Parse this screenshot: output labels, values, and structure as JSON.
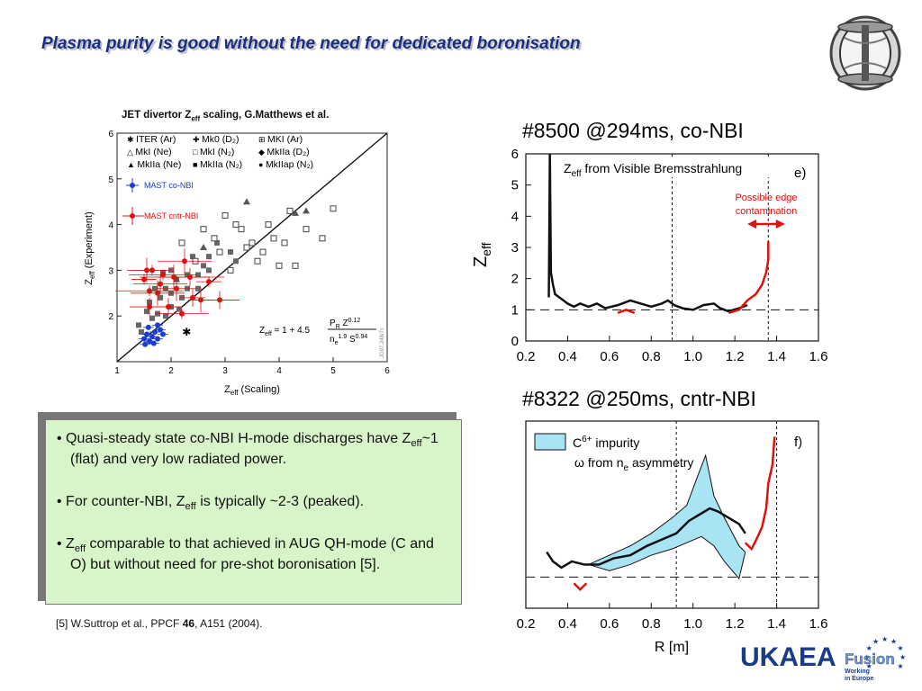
{
  "slide": {
    "title": "Plasma purity is good without the need for dedicated boronisation"
  },
  "left_chart_title": {
    "main": "JET divertor Z",
    "sub": "eff",
    "rest": " scaling, G.Matthews et al."
  },
  "plot_e_title": "#8500  @294ms, co-NBI",
  "plot_f_title": "#8322  @250ms, cntr-NBI",
  "bullets": {
    "b1_a": "• Quasi-steady state co-NBI H-mode discharges have Z",
    "b1_sub": "eff",
    "b1_b": "~1 (flat) and very low radiated power.",
    "b2_a": "• For counter-NBI, Z",
    "b2_sub": "eff",
    "b2_b": " is typically ~2-3 (peaked).",
    "b3_a": "• Z",
    "b3_sub": "eff",
    "b3_b": " comparable to that achieved in AUG QH-mode (C and O) but without need for pre-shot boronisation [5]."
  },
  "reference": {
    "a": "[5] W.Suttrop et al., PPCF ",
    "vol": "46",
    "b": ", A151 (2004)."
  },
  "logo": {
    "name": "UKAEA",
    "fusion": "Fusion",
    "line1": "Working",
    "line2": "in Europe"
  },
  "colors": {
    "title": "#1a2f7a",
    "textbox_bg": "#d7f5c9",
    "red": "#e01010",
    "blue": "#1a3cd0",
    "cyan_fill": "#a8e4f4",
    "logo_blue": "#1a3a8a"
  },
  "chart_data": [
    {
      "type": "scatter",
      "id": "jet-scaling",
      "xlabel_main": "Z",
      "xlabel_sub": "eff",
      "xlabel_rest": " (Scaling)",
      "ylabel_main": "Z",
      "ylabel_sub": "eff",
      "ylabel_rest": " (Experiment)",
      "xlim": [
        1,
        6
      ],
      "ylim": [
        1,
        6
      ],
      "xticks": [
        1,
        2,
        3,
        4,
        5,
        6
      ],
      "yticks": [
        2,
        3,
        4,
        5,
        6
      ],
      "diagonal": [
        [
          1,
          1
        ],
        [
          6,
          6
        ]
      ],
      "formula": {
        "lhs_main": "Z",
        "lhs_sub": "eff",
        "rhs_pre": " = 1 + 4.5",
        "num": "P",
        "num_sub": "R",
        "num_rest": " Z",
        "num_sup": "0.12",
        "den": "n",
        "den_sub": "e",
        "den_sup": "1.9",
        "den_rest": " S",
        "den_sup2": "0.94"
      },
      "watermark": "JG97.248/7c",
      "legend": [
        {
          "marker": "✱",
          "label": "ITER (Ar)"
        },
        {
          "marker": "✚",
          "label": "Mk0 (D₂)"
        },
        {
          "marker": "⊞",
          "label": "MKI (Ar)"
        },
        {
          "marker": "△",
          "label": "MkI (Ne)"
        },
        {
          "marker": "□",
          "label": "MkI (N₂)"
        },
        {
          "marker": "◆",
          "label": "MkIIa (D₂)"
        },
        {
          "marker": "▲",
          "label": "MkIIa (Ne)"
        },
        {
          "marker": "■",
          "label": "MkIIa (N₂)"
        },
        {
          "marker": "●",
          "label": "MkIIap (N₂)"
        }
      ],
      "mast_legend": {
        "co": "MAST co-NBI",
        "cntr": "MAST cntr-NBI",
        "co_point": [
          1.25,
          5.05
        ],
        "cntr_point": [
          1.25,
          4.45
        ]
      },
      "series": [
        {
          "name": "MAST cntr-NBI",
          "points": [
            [
              1.5,
              2.8
            ],
            [
              1.6,
              2.2
            ],
            [
              1.75,
              2.5
            ],
            [
              1.85,
              2.9
            ],
            [
              1.95,
              2.2
            ],
            [
              2.1,
              2.6
            ],
            [
              2.2,
              2.05
            ],
            [
              2.35,
              2.85
            ],
            [
              2.55,
              2.35
            ],
            [
              1.65,
              3.0
            ],
            [
              1.8,
              2.7
            ],
            [
              2.05,
              2.85
            ],
            [
              2.7,
              2.75
            ],
            [
              2.9,
              2.35
            ],
            [
              2.25,
              3.2
            ],
            [
              1.6,
              2.55
            ],
            [
              2.4,
              2.4
            ],
            [
              1.55,
              3.0
            ]
          ]
        },
        {
          "name": "MAST co-NBI",
          "points": [
            [
              1.5,
              1.5
            ],
            [
              1.55,
              1.6
            ],
            [
              1.6,
              1.45
            ],
            [
              1.65,
              1.55
            ],
            [
              1.7,
              1.65
            ],
            [
              1.75,
              1.5
            ],
            [
              1.8,
              1.7
            ],
            [
              1.58,
              1.75
            ],
            [
              1.68,
              1.4
            ],
            [
              1.75,
              1.8
            ],
            [
              1.85,
              1.6
            ],
            [
              1.52,
              1.38
            ]
          ]
        }
      ],
      "grey_points": [
        [
          1.6,
          2.3
        ],
        [
          1.7,
          2.6
        ],
        [
          1.8,
          2.4
        ],
        [
          1.9,
          2.6
        ],
        [
          2.0,
          2.5
        ],
        [
          2.1,
          2.8
        ],
        [
          2.2,
          2.4
        ],
        [
          2.3,
          2.6
        ],
        [
          2.4,
          3.3
        ],
        [
          2.6,
          3.1
        ],
        [
          2.7,
          3.0
        ],
        [
          2.85,
          3.6
        ],
        [
          3.1,
          3.4
        ],
        [
          3.2,
          3.2
        ],
        [
          2.5,
          2.9
        ],
        [
          1.55,
          2.1
        ],
        [
          1.65,
          1.95
        ],
        [
          1.75,
          2.05
        ],
        [
          1.45,
          1.65
        ],
        [
          1.4,
          1.8
        ],
        [
          2.0,
          2.2
        ],
        [
          2.15,
          2.15
        ],
        [
          2.5,
          2.6
        ],
        [
          1.9,
          2.0
        ],
        [
          2.3,
          2.9
        ],
        [
          2.0,
          3.0
        ],
        [
          2.7,
          3.3
        ],
        [
          1.85,
          2.95
        ]
      ],
      "open_squares": [
        [
          2.6,
          3.9
        ],
        [
          2.8,
          3.7
        ],
        [
          3.0,
          4.2
        ],
        [
          3.3,
          3.9
        ],
        [
          3.5,
          3.6
        ],
        [
          3.8,
          4.0
        ],
        [
          4.2,
          4.3
        ],
        [
          4.5,
          3.9
        ],
        [
          4.8,
          3.7
        ],
        [
          5.0,
          4.35
        ],
        [
          3.1,
          3.0
        ],
        [
          3.6,
          3.2
        ],
        [
          4.0,
          3.1
        ],
        [
          4.3,
          3.1
        ],
        [
          2.9,
          3.4
        ],
        [
          3.4,
          3.5
        ],
        [
          3.2,
          4.0
        ],
        [
          2.2,
          3.6
        ],
        [
          3.7,
          3.4
        ],
        [
          4.1,
          3.6
        ],
        [
          2.45,
          3.2
        ],
        [
          3.9,
          3.7
        ]
      ],
      "triangles": [
        [
          3.4,
          4.5
        ],
        [
          4.3,
          4.25
        ],
        [
          4.5,
          4.3
        ],
        [
          2.6,
          3.5
        ],
        [
          2.1,
          2.8
        ]
      ]
    },
    {
      "type": "line",
      "id": "plot-e",
      "label": "e)",
      "ylabel_main": "Z",
      "ylabel_sub": "eff",
      "legend_main": "Z",
      "legend_sub": "eff",
      "legend_rest": " from Visible Bremsstrahlung",
      "annotation": "Possible edge contamination",
      "annotation_range": [
        1.26,
        1.44
      ],
      "xlim": [
        0.2,
        1.6
      ],
      "ylim": [
        0,
        6
      ],
      "xticks": [
        0.2,
        0.4,
        0.6,
        0.8,
        1.0,
        1.2,
        1.4,
        1.6
      ],
      "yticks": [
        0,
        1,
        2,
        3,
        4,
        5,
        6
      ],
      "hline": 1,
      "vlines": [
        0.9,
        1.36
      ],
      "black_series": [
        [
          0.31,
          1.4
        ],
        [
          0.315,
          6.0
        ],
        [
          0.32,
          2.2
        ],
        [
          0.33,
          1.8
        ],
        [
          0.34,
          1.5
        ],
        [
          0.36,
          1.4
        ],
        [
          0.38,
          1.3
        ],
        [
          0.4,
          1.2
        ],
        [
          0.43,
          1.1
        ],
        [
          0.46,
          1.2
        ],
        [
          0.5,
          1.1
        ],
        [
          0.54,
          1.2
        ],
        [
          0.58,
          1.05
        ],
        [
          0.64,
          1.15
        ],
        [
          0.7,
          1.3
        ],
        [
          0.75,
          1.2
        ],
        [
          0.8,
          1.1
        ],
        [
          0.85,
          1.2
        ],
        [
          0.88,
          1.3
        ],
        [
          0.91,
          1.15
        ],
        [
          0.95,
          1.05
        ],
        [
          1.0,
          1.0
        ],
        [
          1.05,
          1.15
        ],
        [
          1.1,
          1.2
        ],
        [
          1.13,
          1.05
        ],
        [
          1.17,
          0.95
        ],
        [
          1.22,
          1.05
        ],
        [
          1.26,
          1.15
        ]
      ],
      "red_series": [
        [
          0.64,
          0.9
        ],
        [
          0.68,
          1.0
        ],
        [
          0.72,
          0.9
        ],
        [
          1.17,
          0.9
        ],
        [
          1.22,
          1.0
        ],
        [
          1.26,
          1.3
        ],
        [
          1.3,
          1.5
        ],
        [
          1.33,
          1.8
        ],
        [
          1.35,
          2.2
        ],
        [
          1.36,
          2.6
        ],
        [
          1.36,
          3.2
        ]
      ]
    },
    {
      "type": "line",
      "id": "plot-f",
      "label": "f)",
      "xlabel": "R [m]",
      "legend_a_main": "C",
      "legend_a_sup": "6+",
      "legend_a_rest": " impurity",
      "legend_b_main": "ω from n",
      "legend_b_sub": "e",
      "legend_b_rest": " asymmetry",
      "xlim": [
        0.2,
        1.6
      ],
      "ylim": [
        0,
        6
      ],
      "xticks": [
        0.2,
        0.4,
        0.6,
        0.8,
        1.0,
        1.2,
        1.4,
        1.6
      ],
      "hline": 1,
      "vlines": [
        0.92,
        1.4
      ],
      "band_upper": [
        [
          0.5,
          1.4
        ],
        [
          0.6,
          1.7
        ],
        [
          0.7,
          2.0
        ],
        [
          0.8,
          2.4
        ],
        [
          0.9,
          2.9
        ],
        [
          0.97,
          3.3
        ],
        [
          1.02,
          4.2
        ],
        [
          1.06,
          4.9
        ],
        [
          1.1,
          3.6
        ],
        [
          1.15,
          2.9
        ],
        [
          1.22,
          2.0
        ],
        [
          1.25,
          1.8
        ]
      ],
      "band_lower": [
        [
          1.25,
          1.8
        ],
        [
          1.22,
          0.95
        ],
        [
          1.15,
          1.5
        ],
        [
          1.1,
          2.0
        ],
        [
          1.04,
          2.3
        ],
        [
          0.97,
          2.1
        ],
        [
          0.9,
          1.9
        ],
        [
          0.8,
          1.7
        ],
        [
          0.7,
          1.4
        ],
        [
          0.6,
          1.2
        ],
        [
          0.5,
          1.4
        ]
      ],
      "black_series": [
        [
          0.3,
          1.8
        ],
        [
          0.33,
          1.5
        ],
        [
          0.37,
          1.3
        ],
        [
          0.42,
          1.5
        ],
        [
          0.48,
          1.4
        ],
        [
          0.55,
          1.4
        ],
        [
          0.62,
          1.6
        ],
        [
          0.7,
          1.7
        ],
        [
          0.78,
          2.0
        ],
        [
          0.85,
          2.2
        ],
        [
          0.92,
          2.4
        ],
        [
          0.98,
          2.8
        ],
        [
          1.03,
          3.0
        ],
        [
          1.08,
          3.2
        ],
        [
          1.12,
          3.1
        ],
        [
          1.17,
          2.9
        ],
        [
          1.22,
          2.7
        ],
        [
          1.25,
          2.4
        ]
      ],
      "red_series": [
        [
          0.43,
          0.8
        ],
        [
          0.46,
          0.6
        ],
        [
          0.49,
          0.8
        ],
        [
          1.25,
          2.1
        ],
        [
          1.28,
          1.9
        ],
        [
          1.31,
          2.3
        ],
        [
          1.33,
          2.6
        ],
        [
          1.35,
          3.2
        ],
        [
          1.36,
          4.0
        ],
        [
          1.38,
          4.6
        ],
        [
          1.39,
          5.5
        ]
      ]
    }
  ]
}
